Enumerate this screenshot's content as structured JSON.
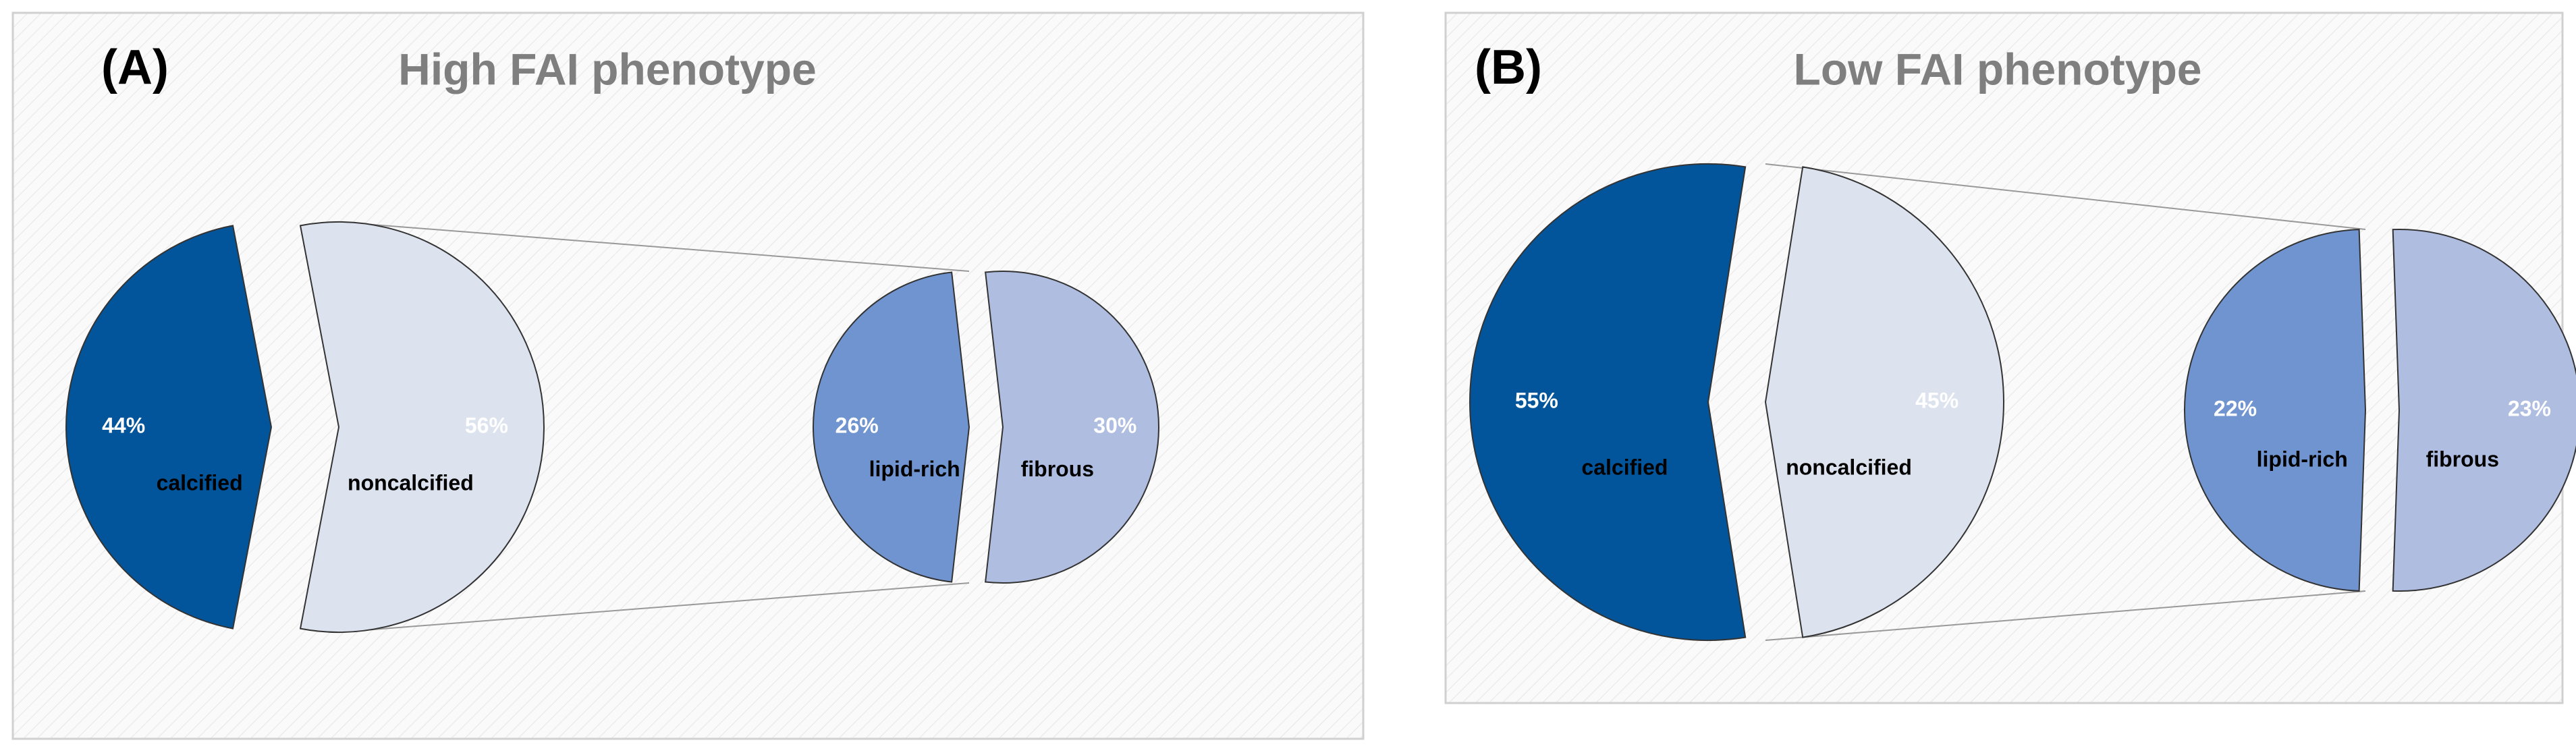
{
  "chart_data": [
    {
      "type": "pie_of_pie",
      "panel_label": "(A)",
      "title": "High FAI phenotype",
      "categories": [
        "calcified",
        "noncalcified"
      ],
      "values": [
        44,
        56
      ],
      "value_labels": [
        "44%",
        "56%"
      ],
      "colors": [
        "#02559b",
        "#dce3ef"
      ],
      "secondary": {
        "categories": [
          "lipid-rich",
          "fibrous"
        ],
        "values": [
          26,
          30
        ],
        "value_labels": [
          "26%",
          "30%"
        ],
        "colors": [
          "#7094d0",
          "#aebde0"
        ]
      }
    },
    {
      "type": "pie_of_pie",
      "panel_label": "(B)",
      "title": "Low FAI phenotype",
      "categories": [
        "calcified",
        "noncalcified"
      ],
      "values": [
        55,
        45
      ],
      "value_labels": [
        "55%",
        "45%"
      ],
      "colors": [
        "#02559b",
        "#dce3ef"
      ],
      "secondary": {
        "categories": [
          "lipid-rich",
          "fibrous"
        ],
        "values": [
          22,
          23
        ],
        "value_labels": [
          "22%",
          "23%"
        ],
        "colors": [
          "#7094d0",
          "#aebde0"
        ]
      }
    }
  ]
}
